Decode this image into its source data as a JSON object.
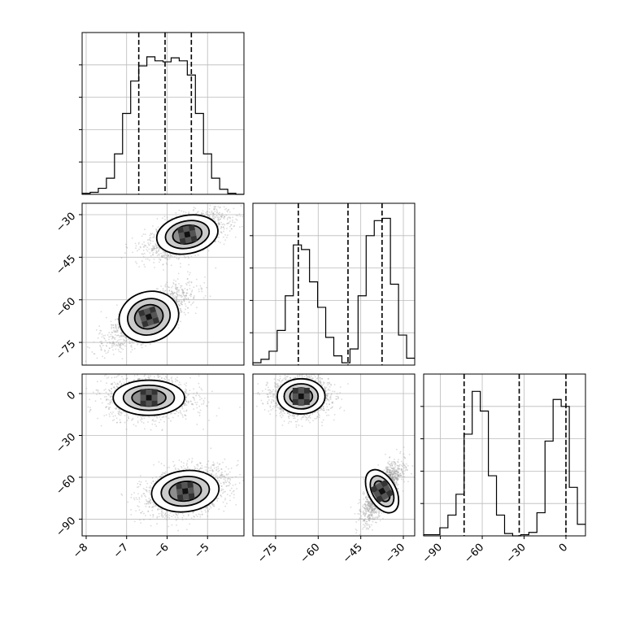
{
  "chart_data": {
    "type": "corner",
    "title": "",
    "parameters": [
      "",
      "",
      ""
    ],
    "quantile_lines": "dashed",
    "grid": true,
    "colors": {
      "axes": "#000000",
      "grid": "#bbbbbb",
      "points": "#999999",
      "contour_fill_dark": "#000000",
      "contour_fill_light": "#ffffff"
    },
    "tick_labels": {
      "p0": [
        "−8",
        "−7",
        "−6",
        "−5"
      ],
      "p1": [
        "−75",
        "−60",
        "−45",
        "−30"
      ],
      "p2": [
        "−90",
        "−60",
        "−30",
        "0"
      ]
    },
    "ranges": {
      "p0": [
        -8.1,
        -4.1
      ],
      "p1": [
        -83,
        -26
      ],
      "p2": [
        -102,
        14
      ]
    },
    "tick_values": {
      "p0": [
        -8,
        -7,
        -6,
        -5
      ],
      "p1": [
        -75,
        -60,
        -45,
        -30
      ],
      "p2": [
        -90,
        -60,
        -30,
        0
      ]
    },
    "marginals": [
      {
        "param": "p0",
        "bin_edges": [
          -8.1,
          -7.9,
          -7.7,
          -7.5,
          -7.3,
          -7.1,
          -6.9,
          -6.7,
          -6.5,
          -6.3,
          -6.1,
          -5.9,
          -5.7,
          -5.5,
          -5.3,
          -5.1,
          -4.9,
          -4.7,
          -4.5,
          -4.3,
          -4.1
        ],
        "counts": [
          1,
          2,
          6,
          16,
          40,
          80,
          112,
          127,
          136,
          132,
          131,
          135,
          132,
          118,
          80,
          40,
          16,
          5,
          1,
          0
        ],
        "quantiles": [
          -6.7,
          -6.05,
          -5.4
        ],
        "ymax": 160
      },
      {
        "param": "p1",
        "bin_edges": [
          -83,
          -80.15,
          -77.3,
          -74.45,
          -71.6,
          -68.75,
          -65.9,
          -63.05,
          -60.2,
          -57.35,
          -54.5,
          -51.65,
          -48.8,
          -45.95,
          -43.1,
          -40.25,
          -37.4,
          -34.55,
          -31.7,
          -28.85,
          -26
        ],
        "counts": [
          2,
          5,
          12,
          30,
          60,
          104,
          100,
          72,
          50,
          24,
          8,
          2,
          14,
          60,
          112,
          125,
          127,
          70,
          26,
          6
        ],
        "quantiles": [
          -67,
          -49.5,
          -37.5
        ],
        "ymax": 140
      },
      {
        "param": "p2",
        "bin_edges": [
          -102,
          -96.2,
          -90.4,
          -84.6,
          -78.8,
          -73,
          -67.2,
          -61.4,
          -55.6,
          -49.8,
          -44,
          -38.2,
          -32.4,
          -26.6,
          -20.8,
          -15,
          -9.2,
          -3.4,
          2.4,
          8.2,
          14
        ],
        "counts": [
          1,
          1,
          7,
          18,
          36,
          88,
          125,
          108,
          52,
          18,
          2,
          0,
          1,
          3,
          20,
          82,
          118,
          112,
          42,
          10
        ],
        "quantiles": [
          -73,
          -33.5,
          0
        ],
        "ymax": 140
      }
    ],
    "joint": [
      {
        "x_param": "p0",
        "y_param": "p1",
        "modes": [
          {
            "mean": [
              -5.5,
              -37
            ],
            "sd": [
              0.4,
              3.2
            ],
            "corr": 0.6,
            "n": 1700
          },
          {
            "mean": [
              -6.45,
              -66
            ],
            "sd": [
              0.4,
              4.2
            ],
            "corr": 0.75,
            "n": 1700
          }
        ]
      },
      {
        "x_param": "p0",
        "y_param": "p2",
        "modes": [
          {
            "mean": [
              -6.45,
              -3
            ],
            "sd": [
              0.42,
              6
            ],
            "corr": 0.0,
            "n": 1700
          },
          {
            "mean": [
              -5.55,
              -70
            ],
            "sd": [
              0.42,
              7
            ],
            "corr": 0.35,
            "n": 1700
          }
        ]
      },
      {
        "x_param": "p1",
        "y_param": "p2",
        "modes": [
          {
            "mean": [
              -66,
              -2
            ],
            "sd": [
              4,
              6
            ],
            "corr": 0.0,
            "n": 1700
          },
          {
            "mean": [
              -37.5,
              -70
            ],
            "sd": [
              2.6,
              8
            ],
            "corr": 0.75,
            "n": 1700
          }
        ]
      }
    ]
  }
}
